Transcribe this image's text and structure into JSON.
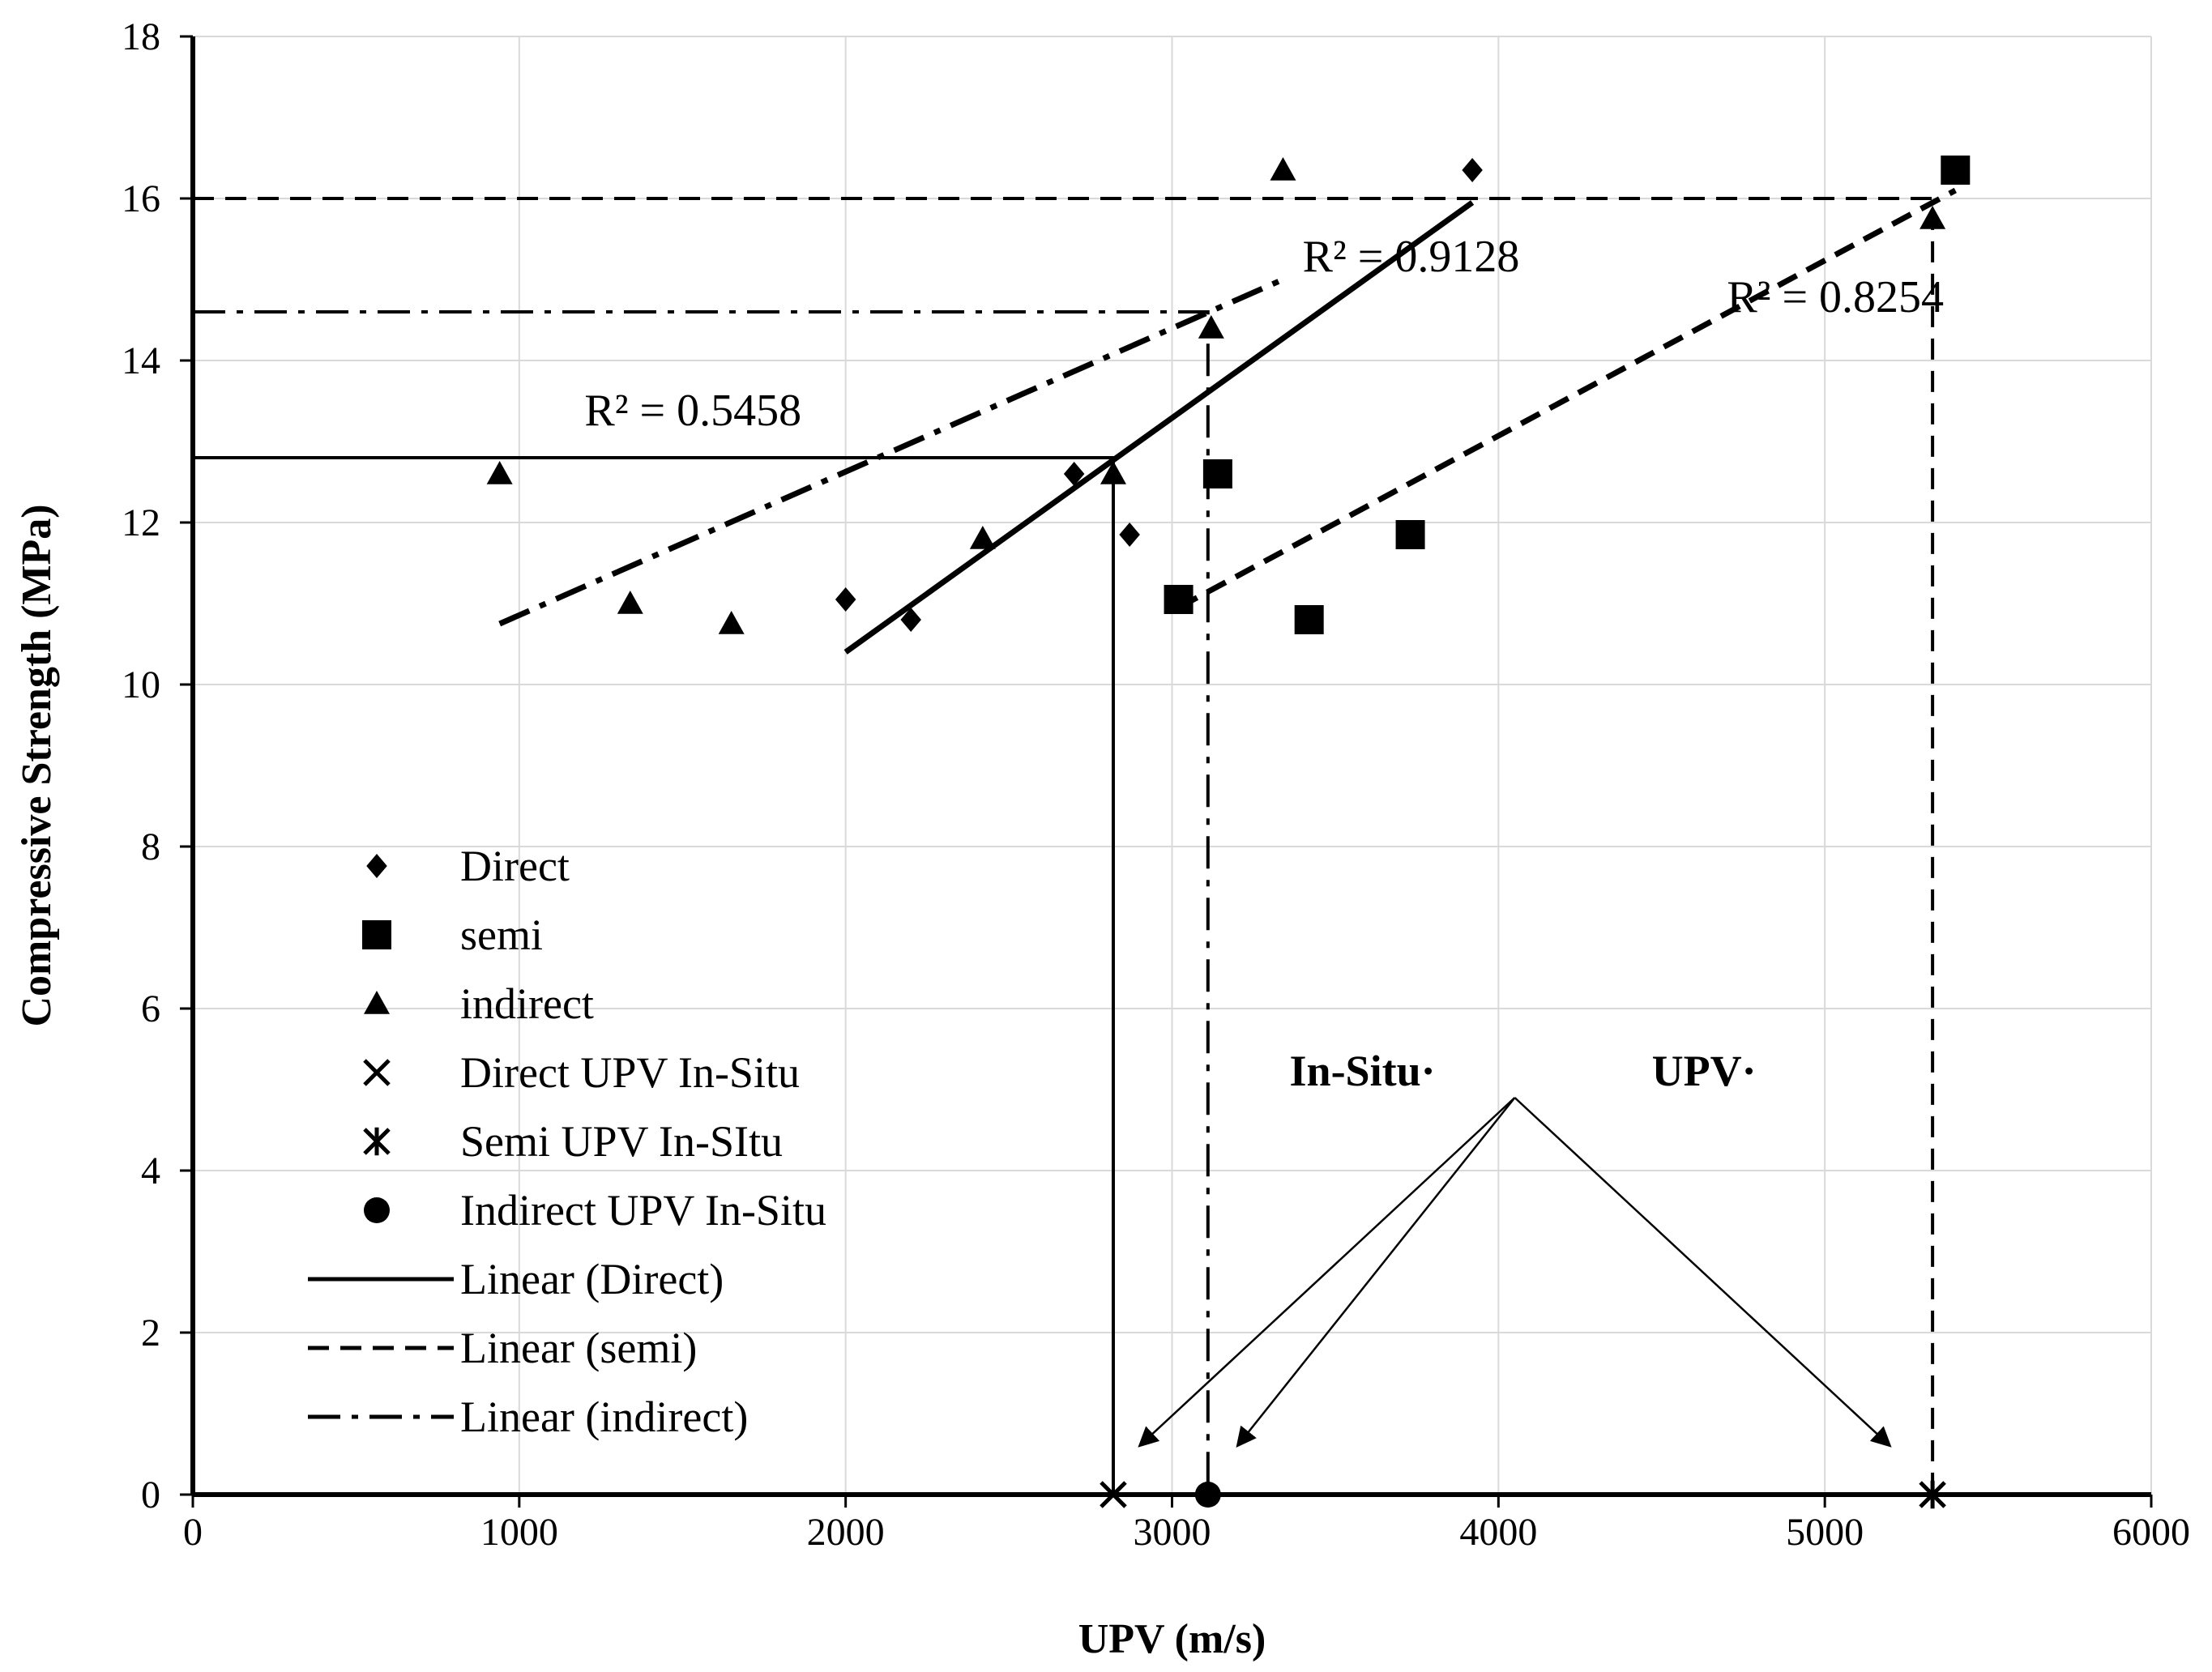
{
  "chart_data": {
    "type": "scatter",
    "title": "",
    "xlabel": "UPV (m/s)",
    "ylabel": "Compressive Strength (MPa)",
    "xlim": [
      0,
      6000
    ],
    "ylim": [
      0,
      18
    ],
    "grid": true,
    "x_ticks": [
      "0",
      "1000",
      "2000",
      "3000",
      "4000",
      "5000",
      "6000"
    ],
    "y_ticks": [
      "0",
      "2",
      "4",
      "6",
      "8",
      "10",
      "12",
      "14",
      "16",
      "18"
    ],
    "series": [
      {
        "name": "Direct",
        "marker": "diamond",
        "points": [
          [
            2000,
            11.05
          ],
          [
            2200,
            10.8
          ],
          [
            2700,
            12.6
          ],
          [
            2870,
            11.85
          ],
          [
            3920,
            16.35
          ]
        ]
      },
      {
        "name": "semi",
        "marker": "square",
        "points": [
          [
            3020,
            11.05
          ],
          [
            3140,
            12.6
          ],
          [
            3420,
            10.8
          ],
          [
            3730,
            11.85
          ],
          [
            5400,
            16.35
          ]
        ]
      },
      {
        "name": "indirect",
        "marker": "triangle",
        "points": [
          [
            940,
            12.6
          ],
          [
            1340,
            11.0
          ],
          [
            1650,
            10.75
          ],
          [
            2420,
            11.8
          ],
          [
            2820,
            12.6
          ],
          [
            3120,
            14.4
          ],
          [
            3340,
            16.35
          ],
          [
            5330,
            15.75
          ]
        ]
      },
      {
        "name": "Direct UPV In-Situ",
        "marker": "x",
        "points": [
          [
            2820,
            0
          ]
        ]
      },
      {
        "name": "Semi UPV In-SItu",
        "marker": "star",
        "points": [
          [
            5330,
            0
          ]
        ]
      },
      {
        "name": "Indirect UPV In-Situ",
        "marker": "circle",
        "points": [
          [
            3110,
            0
          ]
        ]
      }
    ],
    "trendlines": [
      {
        "name": "Linear (Direct)",
        "style": "solid",
        "from": [
          2000,
          10.4
        ],
        "to": [
          3920,
          15.95
        ],
        "r2": "R² = 0.9128",
        "label_at": [
          3400,
          15.1
        ]
      },
      {
        "name": "Linear (semi)",
        "style": "dash",
        "from": [
          3020,
          10.95
        ],
        "to": [
          5400,
          16.1
        ],
        "r2": "R² = 0.8254",
        "label_at": [
          4700,
          14.6
        ]
      },
      {
        "name": "Linear (indirect)",
        "style": "dashdot",
        "from": [
          940,
          10.75
        ],
        "to": [
          3340,
          15.0
        ],
        "r2": "R² = 0.5458",
        "label_at": [
          1200,
          13.2
        ]
      }
    ],
    "reference_lines": [
      {
        "series": "Direct",
        "style": "solid",
        "x": 2820,
        "y": 12.8
      },
      {
        "series": "indirect",
        "style": "dashdot",
        "x": 3110,
        "y": 14.6
      },
      {
        "series": "semi",
        "style": "dash",
        "x": 5330,
        "y": 16.0
      }
    ],
    "legend": {
      "position": "bottom-left",
      "entries": [
        {
          "label": "Direct",
          "kind": "marker",
          "marker": "diamond"
        },
        {
          "label": "semi",
          "kind": "marker",
          "marker": "square"
        },
        {
          "label": "indirect",
          "kind": "marker",
          "marker": "triangle"
        },
        {
          "label": "Direct UPV In-Situ",
          "kind": "marker",
          "marker": "x"
        },
        {
          "label": "Semi UPV In-SItu",
          "kind": "marker",
          "marker": "star"
        },
        {
          "label": "Indirect UPV In-Situ",
          "kind": "marker",
          "marker": "circle"
        },
        {
          "label": "Linear (Direct)",
          "kind": "line",
          "style": "solid"
        },
        {
          "label": "Linear (semi)",
          "kind": "line",
          "style": "dash"
        },
        {
          "label": "Linear (indirect)",
          "kind": "line",
          "style": "dashdot"
        }
      ]
    },
    "annotations": {
      "labels": [
        "In-Situ·",
        "UPV·"
      ],
      "arrow_origin": [
        4050,
        4.9
      ],
      "arrow_targets": [
        [
          2900,
          0.6
        ],
        [
          3200,
          0.6
        ],
        [
          5200,
          0.6
        ]
      ]
    }
  }
}
